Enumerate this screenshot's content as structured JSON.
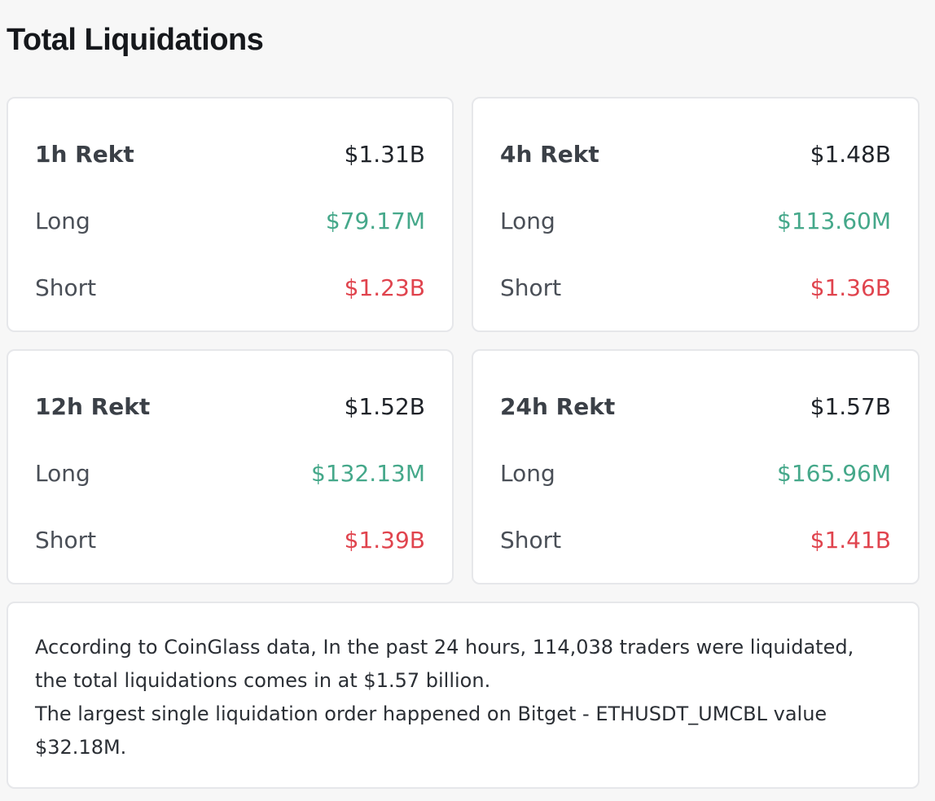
{
  "title": "Total Liquidations",
  "cards": [
    {
      "period": "1h Rekt",
      "total": "$1.31B",
      "long_label": "Long",
      "long": "$79.17M",
      "short_label": "Short",
      "short": "$1.23B"
    },
    {
      "period": "4h Rekt",
      "total": "$1.48B",
      "long_label": "Long",
      "long": "$113.60M",
      "short_label": "Short",
      "short": "$1.36B"
    },
    {
      "period": "12h Rekt",
      "total": "$1.52B",
      "long_label": "Long",
      "long": "$132.13M",
      "short_label": "Short",
      "short": "$1.39B"
    },
    {
      "period": "24h Rekt",
      "total": "$1.57B",
      "long_label": "Long",
      "long": "$165.96M",
      "short_label": "Short",
      "short": "$1.41B"
    }
  ],
  "summary": {
    "line1": "According to CoinGlass data, In the past 24 hours, 114,038 traders were liquidated, the total liquidations comes in at $1.57 billion.",
    "line2": "The largest single liquidation order happened on Bitget - ETHUSDT_UMCBL value $32.18M."
  },
  "colors": {
    "long": "#45a88a",
    "short": "#e0444e",
    "background": "#f7f7f7",
    "card": "#ffffff"
  }
}
